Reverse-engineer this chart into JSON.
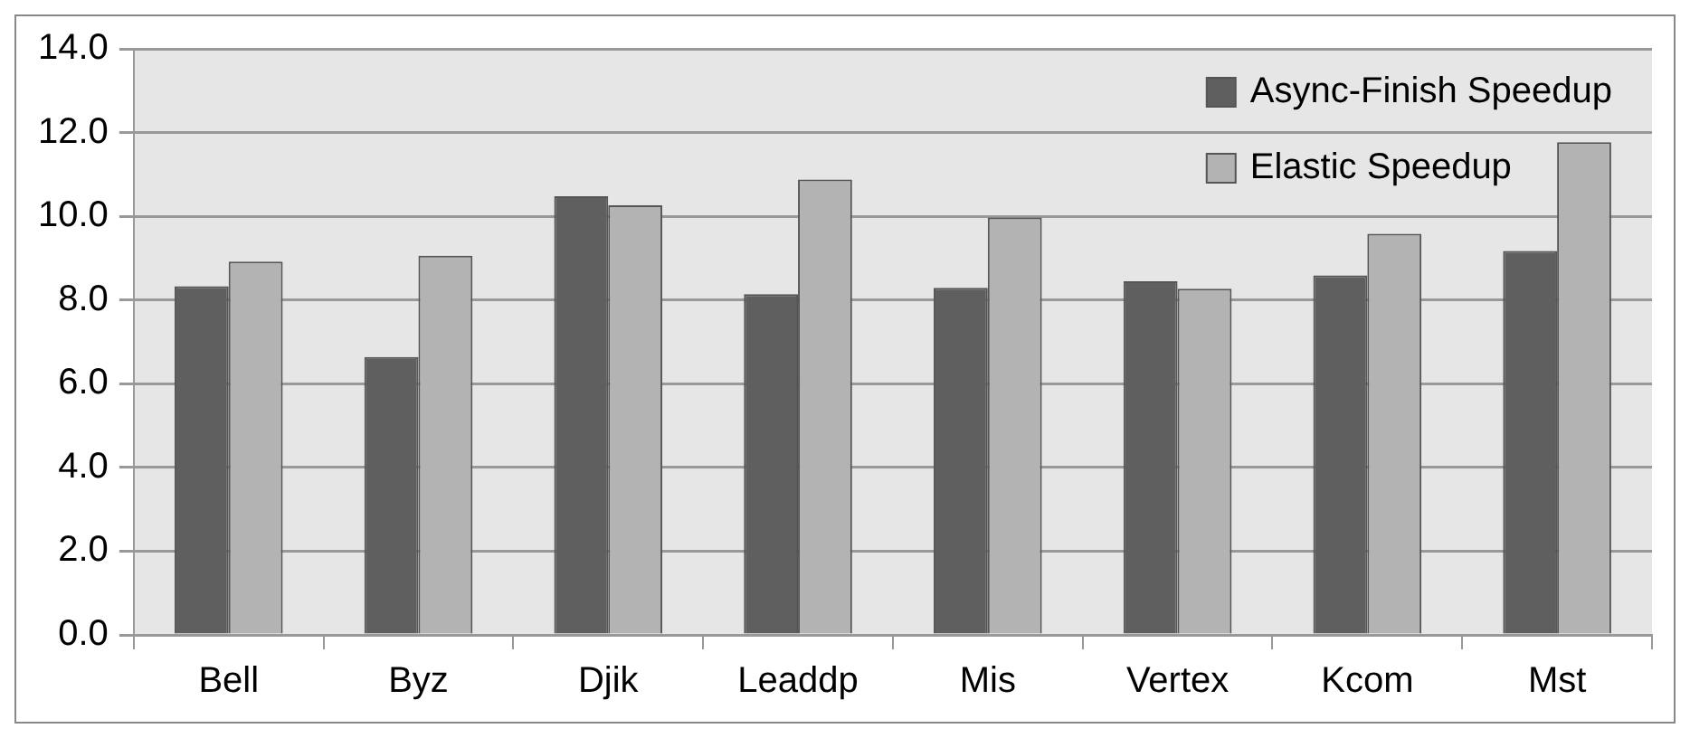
{
  "chart_data": {
    "type": "bar",
    "categories": [
      "Bell",
      "Byz",
      "Djik",
      "Leaddp",
      "Mis",
      "Vertex",
      "Kcom",
      "Mst"
    ],
    "series": [
      {
        "name": "Async-Finish Speedup",
        "color": "#5f5f5f",
        "values": [
          8.33,
          6.64,
          10.48,
          8.14,
          8.29,
          8.45,
          8.59,
          9.17
        ]
      },
      {
        "name": "Elastic Speedup",
        "color": "#b3b3b3",
        "values": [
          8.92,
          9.06,
          10.26,
          10.88,
          9.97,
          8.27,
          9.58,
          11.77
        ]
      }
    ],
    "ylim": [
      0,
      14
    ],
    "yticks": [
      {
        "value": 0,
        "label": "0.0"
      },
      {
        "value": 2,
        "label": "2.0"
      },
      {
        "value": 4,
        "label": "4.0"
      },
      {
        "value": 6,
        "label": "6.0"
      },
      {
        "value": 8,
        "label": "8.0"
      },
      {
        "value": 10,
        "label": "10.0"
      },
      {
        "value": 12,
        "label": "12.0"
      },
      {
        "value": 14,
        "label": "14.0"
      }
    ],
    "grid": "y",
    "legend": "top right"
  }
}
